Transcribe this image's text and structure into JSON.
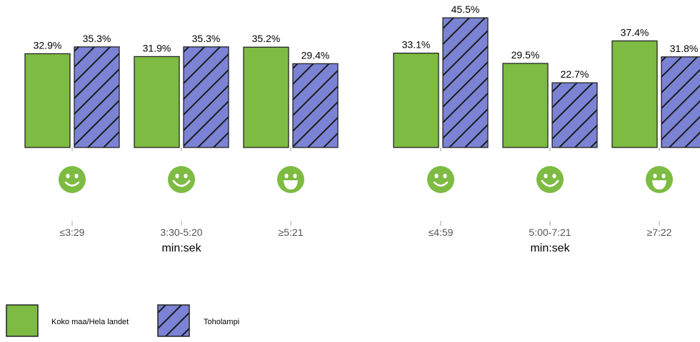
{
  "chart_data": [
    {
      "type": "bar",
      "categories": [
        "≤3:29",
        "3:30-5:20",
        "≥5:21"
      ],
      "xlabel": "min:sek",
      "face_icons": [
        "smile",
        "grin",
        "laugh"
      ],
      "series": [
        {
          "name": "Koko maa/Hela landet",
          "values": [
            32.9,
            31.9,
            35.2
          ],
          "labels": [
            "32.9%",
            "31.9%",
            "35.2%"
          ]
        },
        {
          "name": "Toholampi",
          "values": [
            35.3,
            35.3,
            29.4
          ],
          "labels": [
            "35.3%",
            "35.3%",
            "29.4%"
          ]
        }
      ],
      "ylim": [
        0,
        50
      ]
    },
    {
      "type": "bar",
      "categories": [
        "≤4:59",
        "5:00-7:21",
        "≥7:22"
      ],
      "xlabel": "min:sek",
      "face_icons": [
        "smile",
        "grin",
        "laugh"
      ],
      "series": [
        {
          "name": "Koko maa/Hela landet",
          "values": [
            33.1,
            29.5,
            37.4
          ],
          "labels": [
            "33.1%",
            "29.5%",
            "37.4%"
          ]
        },
        {
          "name": "Toholampi",
          "values": [
            45.5,
            22.7,
            31.8
          ],
          "labels": [
            "45.5%",
            "22.7%",
            "31.8%"
          ]
        }
      ],
      "ylim": [
        0,
        50
      ]
    }
  ],
  "legend": [
    {
      "label": "Koko maa/Hela landet",
      "style": "solid"
    },
    {
      "label": "Toholampi",
      "style": "hatched"
    }
  ],
  "colors": {
    "series_1": "#7dbb42",
    "series_2": "#7b83d4",
    "hatch": "#1a1a1a",
    "face": "#7dbb42"
  }
}
